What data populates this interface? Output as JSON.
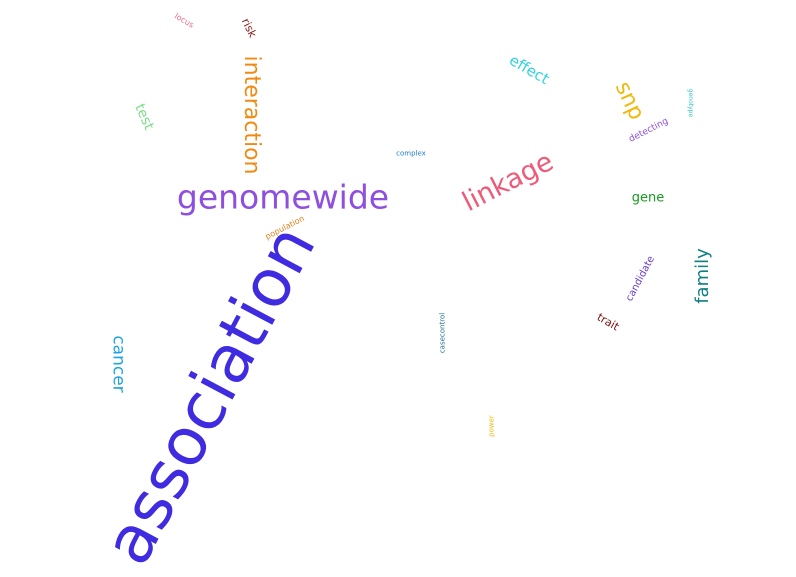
{
  "words": [
    {
      "id": "association",
      "text": "association",
      "color": "#3f2be0"
    },
    {
      "id": "genomewide",
      "text": "genomewide",
      "color": "#8e4fe0"
    },
    {
      "id": "linkage",
      "text": "linkage",
      "color": "#ee5a78"
    },
    {
      "id": "interaction",
      "text": "interaction",
      "color": "#f18a12"
    },
    {
      "id": "snp",
      "text": "snp",
      "color": "#f2b90c"
    },
    {
      "id": "family",
      "text": "family",
      "color": "#0f7f83"
    },
    {
      "id": "cancer",
      "text": "cancer",
      "color": "#1fa3e0"
    },
    {
      "id": "effect",
      "text": "effect",
      "color": "#2fd3dd"
    },
    {
      "id": "test",
      "text": "test",
      "color": "#7fdd8a"
    },
    {
      "id": "gene",
      "text": "gene",
      "color": "#179a1f"
    },
    {
      "id": "risk",
      "text": "risk",
      "color": "#8a1b1b"
    },
    {
      "id": "trait",
      "text": "trait",
      "color": "#7a1010"
    },
    {
      "id": "candidate",
      "text": "candidate",
      "color": "#6a3fd0"
    },
    {
      "id": "detecting",
      "text": "detecting",
      "color": "#8e4fe0"
    },
    {
      "id": "population",
      "text": "population",
      "color": "#e0801a"
    },
    {
      "id": "locus",
      "text": "locus",
      "color": "#ee6a88"
    },
    {
      "id": "complex",
      "text": "complex",
      "color": "#1f7fd0"
    },
    {
      "id": "casecontrol",
      "text": "casecontrol",
      "color": "#1f6f8a"
    },
    {
      "id": "power",
      "text": "power",
      "color": "#f2b90c"
    },
    {
      "id": "genotype",
      "text": "genotype",
      "color": "#2fc3c8"
    }
  ]
}
